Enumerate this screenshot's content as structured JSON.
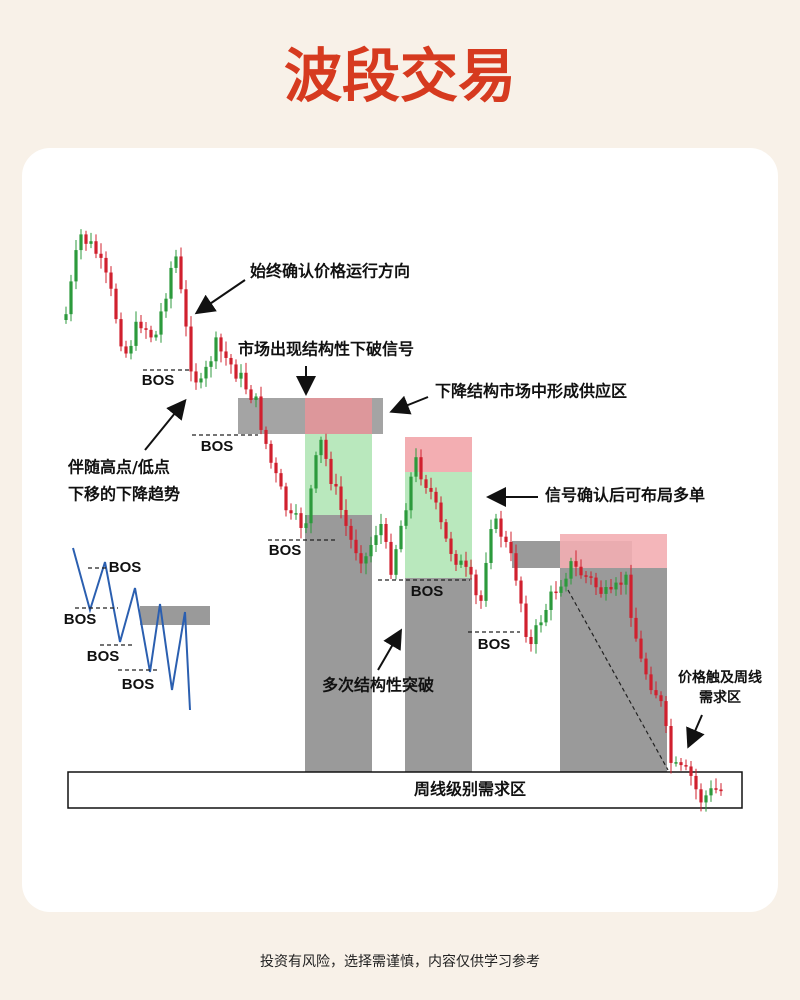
{
  "header": {
    "title": "波段交易"
  },
  "annotations": [
    "始终确认价格运行方向",
    "市场出现结构性下破信号",
    "下降结构市场中形成供应区",
    "伴随高点/低点",
    "下移的下降趋势",
    "信号确认后可布局多单",
    "多次结构性突破",
    "价格触及周线",
    "需求区"
  ],
  "bos_labels": [
    "BOS",
    "BOS",
    "BOS",
    "BOS",
    "BOS",
    "BOS",
    "BOS",
    "BOS",
    "BOS"
  ],
  "zone_label": "周线级别需求区",
  "footer": "投资有风险，选择需谨慎，内容仅供学习参考"
}
